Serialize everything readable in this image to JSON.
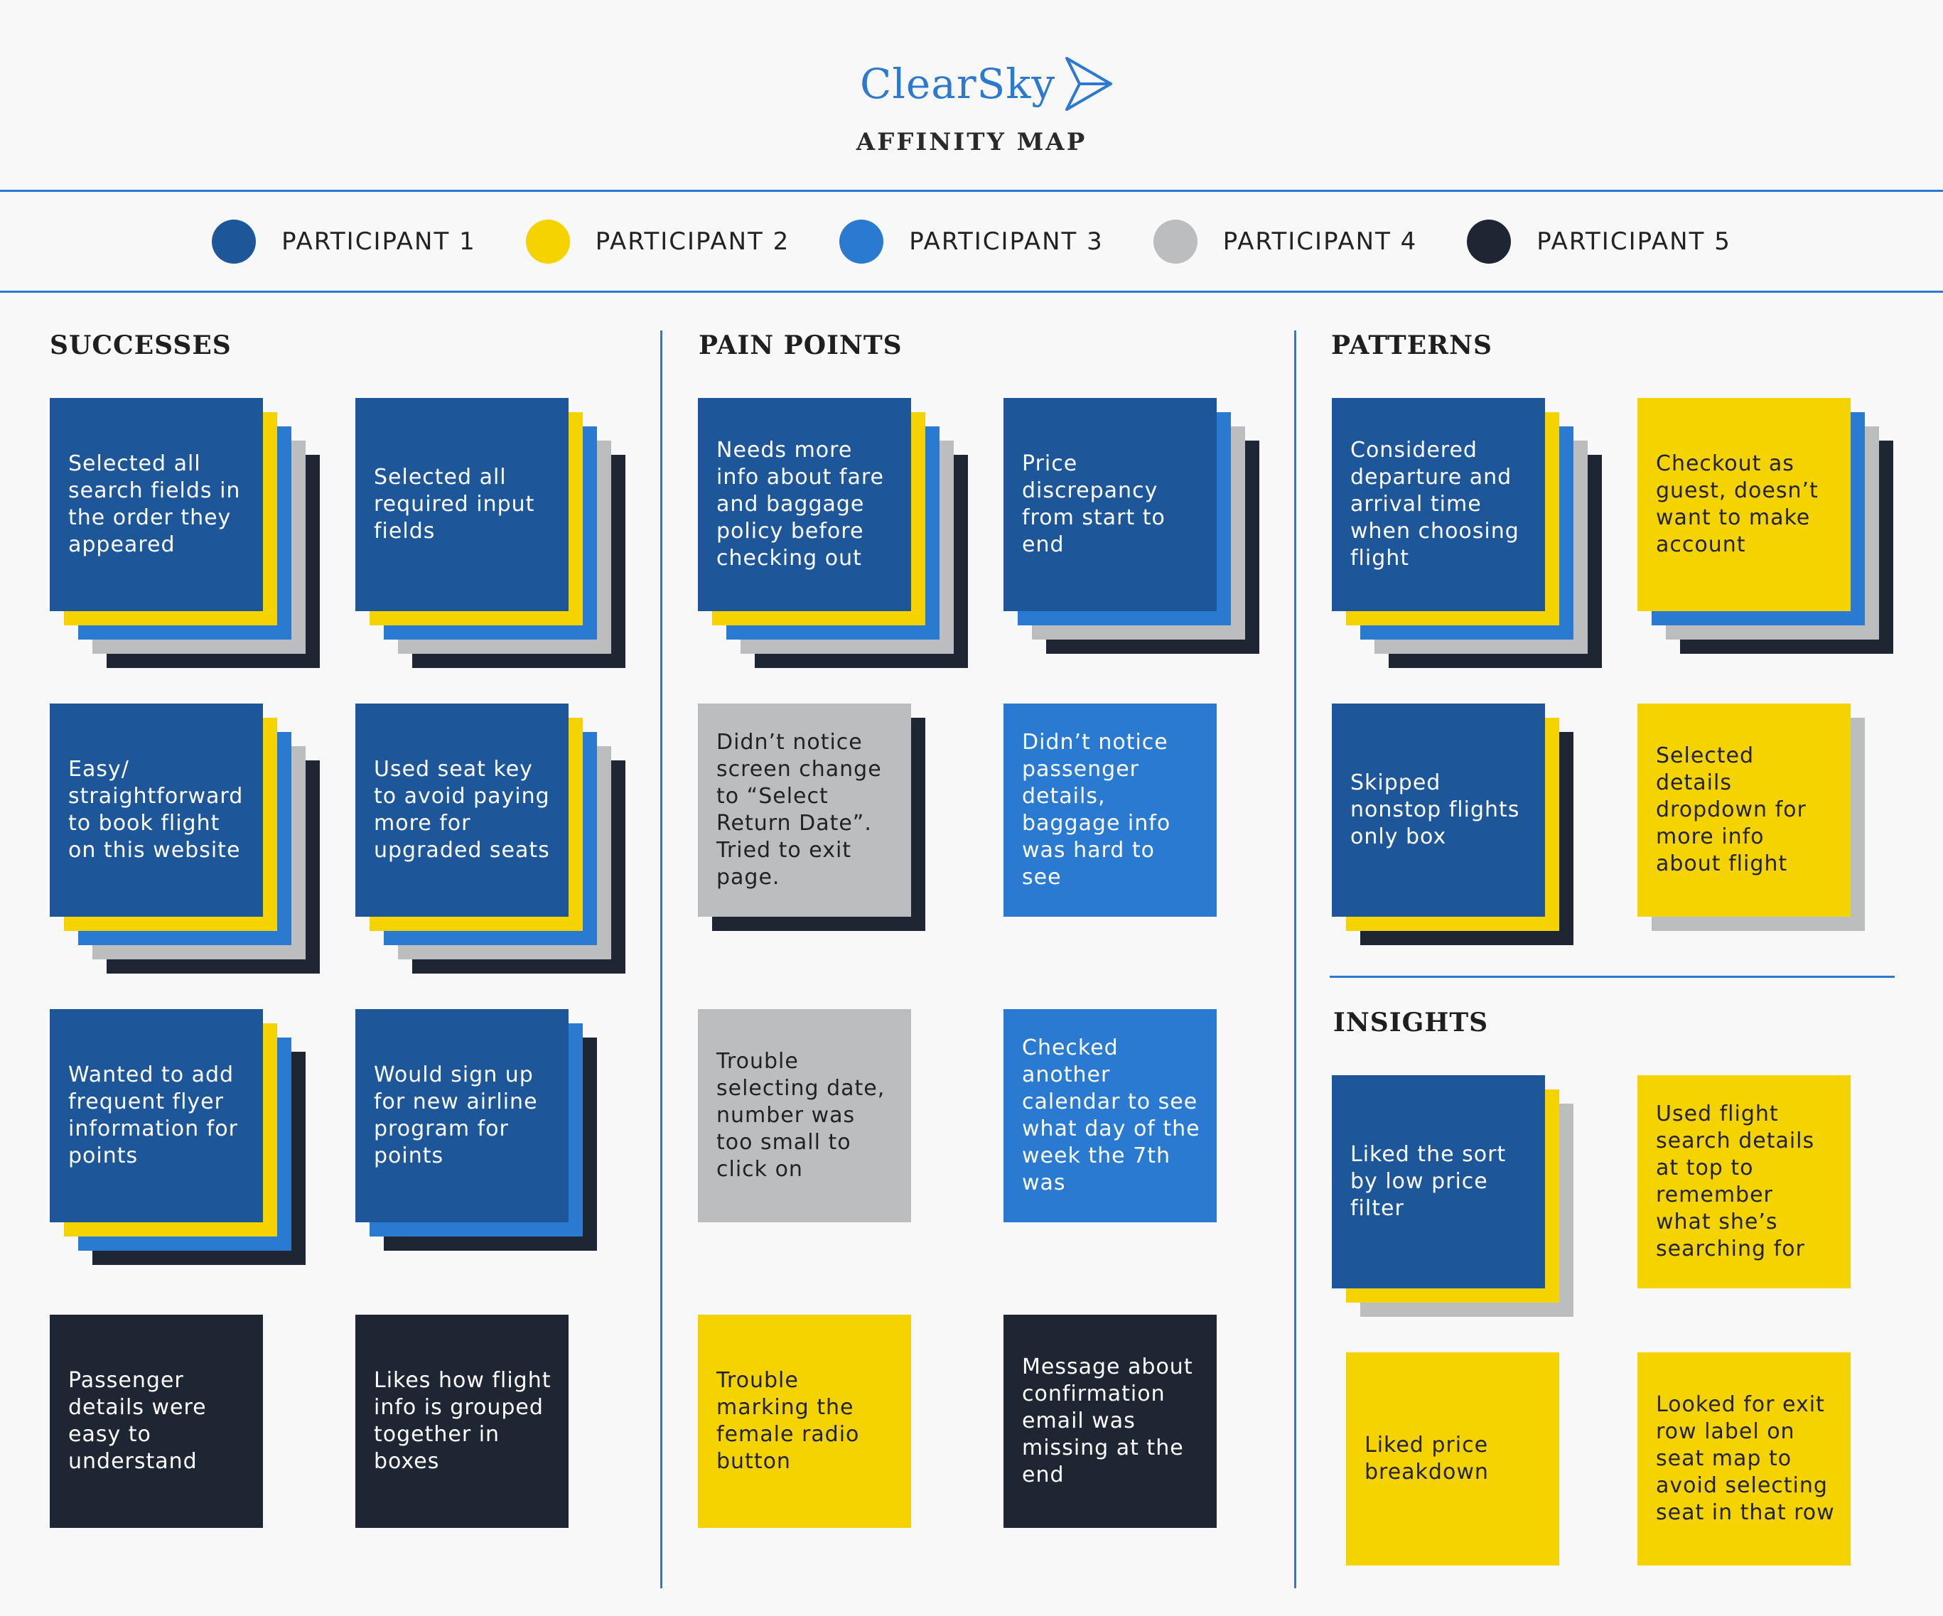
{
  "logo": {
    "text": "ClearSky",
    "icon": "paper-plane-icon"
  },
  "title": "AFFINITY MAP",
  "colors": {
    "p1": "#1e5799",
    "p2": "#f4d300",
    "p3": "#2a7ad2",
    "p4": "#bcbdbf",
    "p5": "#1d2632",
    "accent": "#2c79cf"
  },
  "legend": [
    {
      "label": "PARTICIPANT 1",
      "color": "#1e5799"
    },
    {
      "label": "PARTICIPANT 2",
      "color": "#f4d300"
    },
    {
      "label": "PARTICIPANT 3",
      "color": "#2a7ad2"
    },
    {
      "label": "PARTICIPANT 4",
      "color": "#bcbdbf"
    },
    {
      "label": "PARTICIPANT 5",
      "color": "#1d2632"
    }
  ],
  "sections": {
    "successes": "SUCCESSES",
    "pain_points": "PAIN POINTS",
    "patterns": "PATTERNS",
    "insights": "INSIGHTS"
  },
  "notes": {
    "s1": "Selected all search fields in the order they appeared",
    "s2": "Selected all required input fields",
    "s3": "Easy/ straightforward to book flight on this website",
    "s4": "Used seat key to avoid paying more for upgraded seats",
    "s5": "Wanted to add frequent flyer information for points",
    "s6": "Would sign up for new airline program for points",
    "s7": "Passenger details were easy to understand",
    "s8": "Likes how flight info is grouped together in boxes",
    "p1": "Needs more info about fare and baggage policy before checking out",
    "p2": "Price discrepancy from start to end",
    "p3": "Didn’t notice screen change to “Select Return Date”. Tried to exit page.",
    "p4": "Didn’t notice passenger details, baggage info was hard to see",
    "p5": "Trouble selecting date, number was too small to click on",
    "p6": "Checked another calendar to see what day of the week the 7th was",
    "p7": "Trouble marking the female radio button",
    "p8": "Message about confirmation email was missing at the end",
    "t1": "Considered departure and arrival time when choosing flight",
    "t2": "Checkout as guest, doesn’t want to make account",
    "t3": "Skipped nonstop flights only box",
    "t4": "Selected details dropdown for more info about flight",
    "i1": "Liked the sort by low price filter",
    "i2": "Used flight search details at top to remember what she’s searching for",
    "i3": "Liked price breakdown",
    "i4": "Looked for exit row label on seat map to avoid selecting seat in that row"
  }
}
